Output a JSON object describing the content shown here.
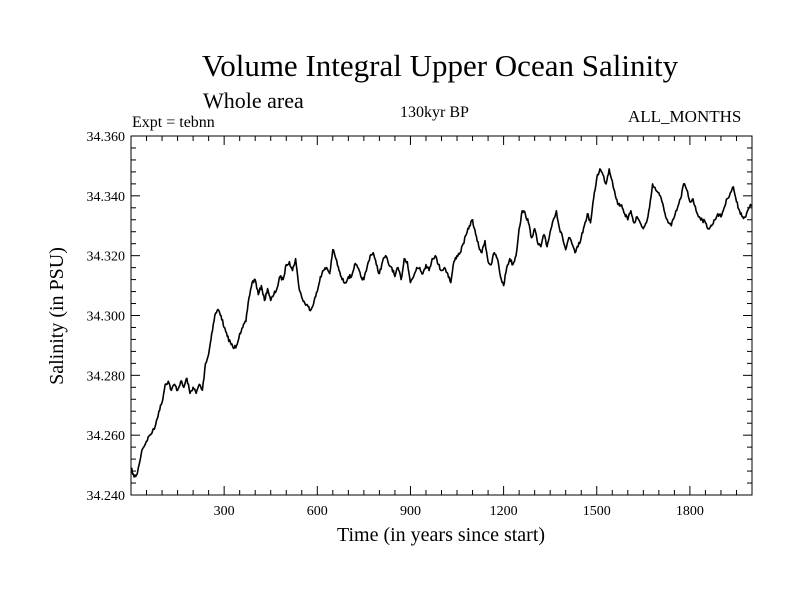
{
  "header": {
    "title": "Volume Integral Upper Ocean Salinity",
    "subtitle": "Whole area",
    "left_label": "Expt = tebnn",
    "center_label": "130kyr BP",
    "right_label": "ALL_MONTHS"
  },
  "chart_data": {
    "type": "line",
    "title": "Volume Integral Upper Ocean Salinity",
    "subtitle": "Whole area",
    "xlabel": "Time (in years since start)",
    "ylabel": "Salinity (in PSU)",
    "xlim": [
      0,
      2000
    ],
    "ylim": [
      34.24,
      34.36
    ],
    "x_ticks": [
      300,
      600,
      900,
      1200,
      1500,
      1800
    ],
    "x_tick_labels": [
      "300",
      "600",
      "900",
      "1200",
      "1500",
      "1800"
    ],
    "y_ticks": [
      34.24,
      34.26,
      34.28,
      34.3,
      34.32,
      34.34,
      34.36
    ],
    "y_tick_labels": [
      "34.240",
      "34.260",
      "34.280",
      "34.300",
      "34.320",
      "34.340",
      "34.360"
    ],
    "grid": false,
    "series": [
      {
        "name": "Salinity",
        "color": "#000000",
        "x": [
          0,
          10,
          20,
          35,
          50,
          60,
          75,
          90,
          100,
          110,
          120,
          130,
          140,
          150,
          160,
          170,
          180,
          190,
          200,
          210,
          220,
          230,
          240,
          250,
          260,
          270,
          280,
          290,
          300,
          310,
          320,
          330,
          340,
          350,
          360,
          370,
          380,
          390,
          400,
          410,
          420,
          430,
          440,
          450,
          460,
          470,
          480,
          490,
          500,
          510,
          520,
          530,
          540,
          550,
          560,
          570,
          580,
          590,
          600,
          610,
          620,
          630,
          640,
          650,
          660,
          670,
          680,
          690,
          700,
          710,
          720,
          730,
          740,
          750,
          760,
          770,
          780,
          790,
          800,
          810,
          820,
          830,
          840,
          850,
          860,
          870,
          880,
          890,
          900,
          910,
          920,
          930,
          940,
          950,
          960,
          970,
          980,
          990,
          1000,
          1010,
          1020,
          1030,
          1040,
          1050,
          1060,
          1070,
          1080,
          1090,
          1100,
          1110,
          1120,
          1130,
          1140,
          1150,
          1160,
          1170,
          1180,
          1190,
          1200,
          1210,
          1220,
          1230,
          1240,
          1250,
          1260,
          1270,
          1280,
          1290,
          1300,
          1310,
          1320,
          1330,
          1340,
          1350,
          1360,
          1370,
          1380,
          1390,
          1400,
          1410,
          1420,
          1430,
          1440,
          1450,
          1460,
          1470,
          1480,
          1490,
          1500,
          1510,
          1520,
          1530,
          1540,
          1550,
          1560,
          1570,
          1580,
          1590,
          1600,
          1610,
          1620,
          1630,
          1640,
          1650,
          1660,
          1670,
          1680,
          1690,
          1700,
          1710,
          1720,
          1730,
          1740,
          1750,
          1760,
          1770,
          1780,
          1790,
          1800,
          1810,
          1820,
          1830,
          1840,
          1850,
          1860,
          1870,
          1880,
          1890,
          1900,
          1910,
          1920,
          1930,
          1940,
          1950,
          1960,
          1970,
          1980,
          1990,
          2000
        ],
        "y": [
          34.249,
          34.246,
          34.247,
          34.255,
          34.258,
          34.26,
          34.262,
          34.268,
          34.271,
          34.277,
          34.278,
          34.275,
          34.277,
          34.275,
          34.278,
          34.276,
          34.279,
          34.274,
          34.276,
          34.274,
          34.277,
          34.275,
          34.284,
          34.287,
          34.294,
          34.3,
          34.302,
          34.3,
          34.296,
          34.293,
          34.291,
          34.289,
          34.29,
          34.294,
          34.296,
          34.298,
          34.306,
          34.311,
          34.312,
          34.307,
          34.31,
          34.305,
          34.309,
          34.305,
          34.307,
          34.309,
          34.313,
          34.312,
          34.317,
          34.318,
          34.315,
          34.319,
          34.31,
          34.306,
          34.304,
          34.303,
          34.302,
          34.305,
          34.308,
          34.313,
          34.315,
          34.316,
          34.314,
          34.322,
          34.319,
          34.315,
          34.312,
          34.311,
          34.313,
          34.313,
          34.317,
          34.316,
          34.313,
          34.312,
          34.316,
          34.32,
          34.321,
          34.317,
          34.314,
          34.318,
          34.32,
          34.317,
          34.316,
          34.313,
          34.316,
          34.312,
          34.319,
          34.318,
          34.311,
          34.313,
          34.316,
          34.316,
          34.314,
          34.317,
          34.315,
          34.319,
          34.32,
          34.317,
          34.315,
          34.316,
          34.314,
          34.311,
          34.318,
          34.32,
          34.321,
          34.324,
          34.327,
          34.33,
          34.332,
          34.327,
          34.323,
          34.321,
          34.325,
          34.318,
          34.317,
          34.321,
          34.319,
          34.313,
          34.31,
          34.316,
          34.319,
          34.317,
          34.32,
          34.329,
          34.335,
          34.334,
          34.331,
          34.326,
          34.329,
          34.324,
          34.323,
          34.327,
          34.323,
          34.328,
          34.332,
          34.335,
          34.329,
          34.326,
          34.322,
          34.326,
          34.324,
          34.321,
          34.323,
          34.326,
          34.33,
          34.334,
          34.331,
          34.339,
          34.346,
          34.349,
          34.347,
          34.344,
          34.349,
          34.345,
          34.34,
          34.337,
          34.337,
          34.334,
          34.332,
          34.335,
          34.331,
          34.333,
          34.331,
          34.329,
          34.331,
          34.336,
          34.344,
          34.342,
          34.341,
          34.338,
          34.334,
          34.331,
          34.33,
          34.333,
          34.336,
          34.339,
          34.344,
          34.342,
          34.338,
          34.339,
          34.335,
          34.333,
          34.332,
          34.331,
          34.329,
          34.33,
          34.332,
          34.334,
          34.333,
          34.336,
          34.339,
          34.341,
          34.343,
          34.338,
          34.335,
          34.333,
          34.333,
          34.336,
          34.337
        ]
      }
    ]
  }
}
